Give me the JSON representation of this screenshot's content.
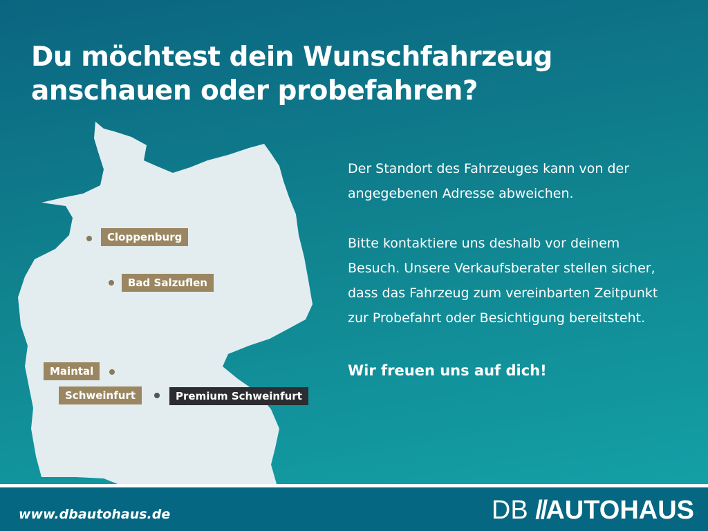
{
  "headline": "Du möchtest dein Wunschfahrzeug anschauen oder probefahren?",
  "locations": [
    {
      "name": "Cloppenburg",
      "style": "gold"
    },
    {
      "name": "Bad Salzuflen",
      "style": "gold"
    },
    {
      "name": "Maintal",
      "style": "gold"
    },
    {
      "name": "Schweinfurt",
      "style": "gold"
    },
    {
      "name": "Premium Schweinfurt",
      "style": "dark"
    }
  ],
  "body": {
    "p1": "Der Standort des Fahrzeuges kann von der angegebenen Adresse abweichen.",
    "p2": "Bitte kontaktiere uns deshalb vor deinem Besuch. Unsere Verkaufsberater stellen sicher, dass das Fahrzeug zum vereinbarten Zeitpunkt zur Probefahrt oder Besichtigung bereitsteht.",
    "closing": "Wir freuen uns auf dich!"
  },
  "footer": {
    "url": "www.dbautohaus.de",
    "logo_prefix": "DB",
    "logo_main": "AUTOHAUS"
  },
  "colors": {
    "gold": "#9a8761",
    "dark": "#2b2d30",
    "footer": "#056781",
    "map": "#e3edf0"
  }
}
